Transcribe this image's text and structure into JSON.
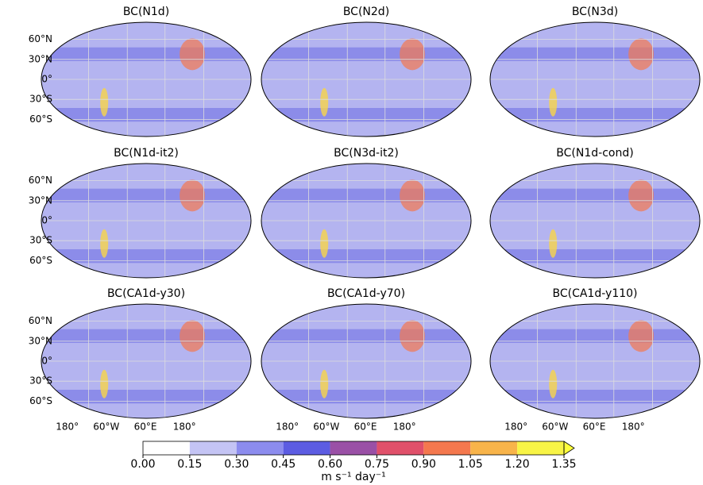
{
  "panels": [
    {
      "title": "BC(N1d)"
    },
    {
      "title": "BC(N2d)"
    },
    {
      "title": "BC(N3d)"
    },
    {
      "title": "BC(N1d-it2)"
    },
    {
      "title": "BC(N3d-it2)"
    },
    {
      "title": "BC(N1d-cond)"
    },
    {
      "title": "BC(CA1d-y30)"
    },
    {
      "title": "BC(CA1d-y70)"
    },
    {
      "title": "BC(CA1d-y110)"
    }
  ],
  "lat_labels": [
    "60°N",
    "30°N",
    "0°",
    "30°S",
    "60°S"
  ],
  "lon_labels": [
    "180°",
    "60°W",
    "60°E",
    "180°"
  ],
  "colorbar": {
    "ticks": [
      {
        "value": 0,
        "label": "0.00"
      },
      0.15,
      {
        "value": 0.3,
        "label": "0.30"
      },
      0.45,
      {
        "value": 0.6,
        "label": "0.60"
      },
      0.75,
      {
        "value": 0.9,
        "label": "0.90"
      },
      1.05,
      {
        "value": 1.2,
        "label": "1.20"
      },
      1.35
    ],
    "colors": [
      "#ffffff",
      "#c4c4f4",
      "#8c8cee",
      "#5c5ce2",
      "#9a50a6",
      "#e0506a",
      "#f4784e",
      "#f8b44a",
      "#f8f446"
    ],
    "extend_color": "#ffff3c",
    "label": "m s⁻¹ day⁻¹"
  }
}
